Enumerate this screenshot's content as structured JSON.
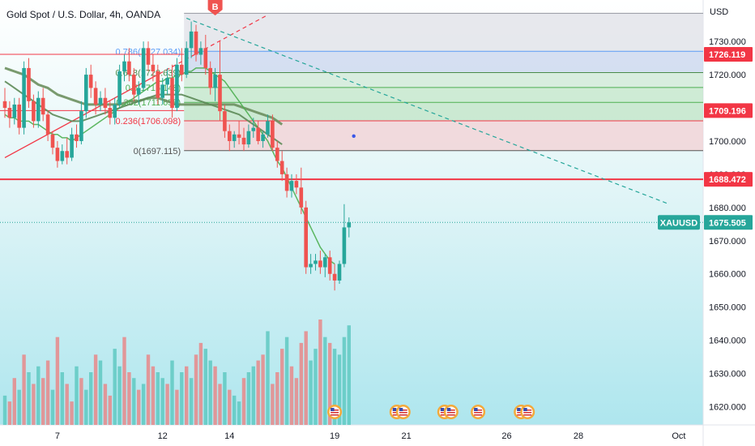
{
  "chart_data": {
    "type": "candlestick",
    "title": "Gold Spot / U.S. Dollar, 4h, OANDA",
    "currency": "USD",
    "symbol": "XAUUSD",
    "last_price": "1675.505",
    "ylim": [
      1615,
      1742
    ],
    "y_ticks": [
      "1730.000",
      "1720.000",
      "1710.000",
      "1700.000",
      "1690.000",
      "1680.000",
      "1670.000",
      "1660.000",
      "1650.000",
      "1640.000",
      "1630.000",
      "1620.000"
    ],
    "x_ticks": [
      {
        "label": "7",
        "bar": 11
      },
      {
        "label": "12",
        "bar": 33
      },
      {
        "label": "14",
        "bar": 47
      },
      {
        "label": "19",
        "bar": 69
      },
      {
        "label": "21",
        "bar": 84
      },
      {
        "label": "26",
        "bar": 105
      },
      {
        "label": "28",
        "bar": 120
      },
      {
        "label": "Oct",
        "bar": 141
      }
    ],
    "price_labels": [
      {
        "label": "1726.119",
        "value": 1726.119,
        "color": "#f23645"
      },
      {
        "label": "1709.196",
        "value": 1709.196,
        "color": "#f23645"
      },
      {
        "label": "1688.472",
        "value": 1688.472,
        "color": "#f23645"
      }
    ],
    "horizontal_lines": [
      {
        "value": 1688.472,
        "color": "#f23645",
        "width": 2
      }
    ],
    "fib_levels": [
      {
        "label": "0.786(1727.034)",
        "value": 1727.034,
        "color": "#5b9cf6"
      },
      {
        "label": "0.618(1720.639)",
        "value": 1720.639,
        "color": "#4a8a4a"
      },
      {
        "label": "0.5(1716.148)",
        "value": 1716.148,
        "color": "#4caf50"
      },
      {
        "label": "0.382(1711.655)",
        "value": 1711.655,
        "color": "#4caf50"
      },
      {
        "label": "0.236(1706.098)",
        "value": 1706.098,
        "color": "#f23645"
      },
      {
        "label": "0(1697.115)",
        "value": 1697.115,
        "color": "#555555"
      }
    ],
    "fib_top": 1738.5,
    "marker_label": "B",
    "marker_bar": 44,
    "ohlc": [
      [
        1712,
        1716,
        1707,
        1710
      ],
      [
        1710,
        1712,
        1704,
        1707
      ],
      [
        1707,
        1713,
        1705,
        1711
      ],
      [
        1711,
        1713,
        1702,
        1704
      ],
      [
        1704,
        1724,
        1702,
        1722
      ],
      [
        1722,
        1725,
        1710,
        1712
      ],
      [
        1712,
        1714,
        1704,
        1706
      ],
      [
        1706,
        1715,
        1704,
        1713
      ],
      [
        1713,
        1716,
        1706,
        1708
      ],
      [
        1708,
        1709,
        1700,
        1702
      ],
      [
        1702,
        1703,
        1696,
        1698
      ],
      [
        1698,
        1700,
        1692,
        1694
      ],
      [
        1694,
        1699,
        1693,
        1697
      ],
      [
        1697,
        1701,
        1693,
        1695
      ],
      [
        1695,
        1704,
        1694,
        1702
      ],
      [
        1702,
        1705,
        1698,
        1700
      ],
      [
        1700,
        1712,
        1699,
        1709
      ],
      [
        1709,
        1722,
        1707,
        1720
      ],
      [
        1720,
        1723,
        1713,
        1716
      ],
      [
        1716,
        1718,
        1708,
        1711
      ],
      [
        1711,
        1715,
        1709,
        1713
      ],
      [
        1713,
        1716,
        1708,
        1710
      ],
      [
        1710,
        1712,
        1705,
        1707
      ],
      [
        1707,
        1713,
        1705,
        1711
      ],
      [
        1711,
        1723,
        1710,
        1721
      ],
      [
        1721,
        1726,
        1718,
        1724
      ],
      [
        1724,
        1728,
        1718,
        1720
      ],
      [
        1720,
        1722,
        1712,
        1714
      ],
      [
        1714,
        1718,
        1711,
        1716
      ],
      [
        1716,
        1730,
        1715,
        1728
      ],
      [
        1728,
        1730,
        1721,
        1723
      ],
      [
        1723,
        1726,
        1718,
        1721
      ],
      [
        1721,
        1723,
        1711,
        1713
      ],
      [
        1713,
        1719,
        1711,
        1717
      ],
      [
        1717,
        1722,
        1714,
        1719
      ],
      [
        1719,
        1723,
        1707,
        1710
      ],
      [
        1710,
        1725,
        1709,
        1723
      ],
      [
        1723,
        1728,
        1718,
        1720
      ],
      [
        1720,
        1730,
        1719,
        1728
      ],
      [
        1728,
        1736,
        1725,
        1733
      ],
      [
        1733,
        1735,
        1724,
        1726
      ],
      [
        1726,
        1730,
        1723,
        1728
      ],
      [
        1728,
        1732,
        1720,
        1722
      ],
      [
        1722,
        1724,
        1714,
        1716
      ],
      [
        1716,
        1722,
        1712,
        1720
      ],
      [
        1720,
        1730,
        1706,
        1709
      ],
      [
        1709,
        1711,
        1701,
        1703
      ],
      [
        1703,
        1705,
        1697,
        1700
      ],
      [
        1700,
        1703,
        1698,
        1702
      ],
      [
        1702,
        1706,
        1699,
        1701
      ],
      [
        1701,
        1704,
        1697,
        1699
      ],
      [
        1699,
        1705,
        1698,
        1703
      ],
      [
        1703,
        1707,
        1701,
        1704
      ],
      [
        1704,
        1706,
        1699,
        1700
      ],
      [
        1700,
        1703,
        1698,
        1702
      ],
      [
        1702,
        1708,
        1701,
        1706
      ],
      [
        1706,
        1708,
        1697,
        1698
      ],
      [
        1698,
        1700,
        1692,
        1694
      ],
      [
        1694,
        1697,
        1688,
        1690
      ],
      [
        1690,
        1692,
        1683,
        1685
      ],
      [
        1685,
        1690,
        1683,
        1688
      ],
      [
        1688,
        1690,
        1684,
        1686
      ],
      [
        1686,
        1692,
        1678,
        1680
      ],
      [
        1680,
        1682,
        1660,
        1662
      ],
      [
        1662,
        1666,
        1660,
        1663
      ],
      [
        1663,
        1666,
        1661,
        1664
      ],
      [
        1664,
        1667,
        1660,
        1662
      ],
      [
        1662,
        1666,
        1659,
        1665
      ],
      [
        1665,
        1667,
        1658,
        1660
      ],
      [
        1660,
        1663,
        1655,
        1658
      ],
      [
        1658,
        1664,
        1657,
        1663
      ],
      [
        1663,
        1681,
        1662,
        1674
      ],
      [
        1674,
        1677,
        1671,
        1675.5
      ]
    ],
    "volume": [
      5,
      4,
      8,
      6,
      12,
      9,
      7,
      10,
      8,
      11,
      6,
      15,
      9,
      7,
      4,
      10,
      8,
      6,
      9,
      12,
      11,
      7,
      5,
      13,
      10,
      15,
      9,
      8,
      6,
      7,
      12,
      10,
      9,
      8,
      7,
      11,
      6,
      9,
      10,
      8,
      12,
      14,
      13,
      11,
      10,
      7,
      9,
      6,
      5,
      4,
      8,
      9,
      10,
      11,
      12,
      16,
      7,
      9,
      13,
      15,
      10,
      8,
      14,
      16,
      11,
      13,
      18,
      15,
      14,
      13,
      12,
      15,
      17
    ],
    "volume_colors": [
      "up",
      "down",
      "down",
      "up",
      "down",
      "up",
      "down",
      "up",
      "down",
      "down",
      "up",
      "down",
      "up",
      "down",
      "down",
      "up",
      "down",
      "up",
      "up",
      "down",
      "up",
      "down",
      "down",
      "up",
      "up",
      "down",
      "down",
      "up",
      "down",
      "up",
      "down",
      "down",
      "up",
      "up",
      "down",
      "up",
      "down",
      "up",
      "down",
      "up",
      "down",
      "down",
      "up",
      "up",
      "down",
      "down",
      "up",
      "down",
      "up",
      "up",
      "down",
      "up",
      "up",
      "down",
      "down",
      "up",
      "down",
      "down",
      "down",
      "up",
      "down",
      "down",
      "down",
      "down",
      "up",
      "up",
      "down",
      "up",
      "down",
      "up",
      "up",
      "up",
      "up"
    ],
    "moving_averages": [
      {
        "name": "",
        "color": "#6b8f5e",
        "width": 3,
        "values": [
          1722,
          1721.5,
          1721,
          1720.5,
          1720,
          1719,
          1718,
          1717,
          1716.5,
          1716,
          1715,
          1714,
          1713.5,
          1713,
          1712.5,
          1712,
          1711.5,
          1711,
          1711,
          1711,
          1711,
          1711,
          1711,
          1711,
          1711,
          1711.5,
          1712,
          1712,
          1712,
          1712.5,
          1713,
          1713,
          1713,
          1712.5,
          1712,
          1711.5,
          1711,
          1711,
          1711,
          1711,
          1711,
          1711,
          1711,
          1711,
          1711,
          1711,
          1711,
          1711,
          1711,
          1710.5,
          1710,
          1709.5,
          1709,
          1708.5,
          1708,
          1707.5,
          1707,
          1706,
          1705
        ]
      },
      {
        "name": "",
        "color": "#4caf50",
        "width": 1.5,
        "values": [
          1708,
          1707,
          1707,
          1706,
          1706,
          1706,
          1705,
          1705,
          1704,
          1703,
          1702,
          1702,
          1701,
          1701,
          1700,
          1701,
          1702,
          1703,
          1704,
          1705,
          1706,
          1707,
          1708,
          1709,
          1710,
          1711,
          1712,
          1713,
          1714,
          1715,
          1716,
          1717,
          1718,
          1718,
          1719,
          1719,
          1720,
          1720,
          1721,
          1721,
          1722,
          1722,
          1722,
          1721,
          1720,
          1719,
          1718,
          1716,
          1714,
          1712,
          1710,
          1708,
          1706,
          1704,
          1702,
          1700,
          1697,
          1694,
          1692,
          1689,
          1686,
          1683,
          1680,
          1677,
          1674,
          1671,
          1668,
          1666,
          1664,
          1663
        ]
      },
      {
        "name": "",
        "color": "#5c8a56",
        "width": 2,
        "values": [
          1718,
          1717,
          1716,
          1715,
          1714,
          1713,
          1712,
          1711,
          1710,
          1709,
          1708,
          1707.5,
          1707,
          1706.5,
          1706,
          1706,
          1706,
          1706.5,
          1707,
          1707.5,
          1708,
          1708.5,
          1709,
          1709.5,
          1710,
          1710.5,
          1711,
          1711.5,
          1712,
          1712.5,
          1713,
          1713.5,
          1714,
          1714,
          1714,
          1714,
          1714,
          1714,
          1713.5,
          1713,
          1712.5,
          1712,
          1711.5,
          1711,
          1710.5,
          1710,
          1709.5,
          1709,
          1708.5,
          1708,
          1707,
          1706,
          1705,
          1704,
          1703,
          1702,
          1701,
          1700,
          1699
        ]
      }
    ],
    "trendlines": [
      {
        "from": [
          0,
          1695
        ],
        "to": [
          55,
          1738
        ],
        "color": "#f23645",
        "dashed": false,
        "dashed_after_bar": 31
      },
      {
        "from": [
          38,
          1737
        ],
        "to": [
          139,
          1681
        ],
        "color": "#26a69a",
        "dashed": true
      }
    ],
    "event_icons": [
      {
        "bar": 69,
        "count": 1
      },
      {
        "bar": 82,
        "count": 2
      },
      {
        "bar": 92,
        "count": 2
      },
      {
        "bar": 99,
        "count": 1
      },
      {
        "bar": 108,
        "count": 2
      }
    ],
    "dot": {
      "bar": 73,
      "value": 1701.5,
      "color": "#3a57e8"
    }
  }
}
